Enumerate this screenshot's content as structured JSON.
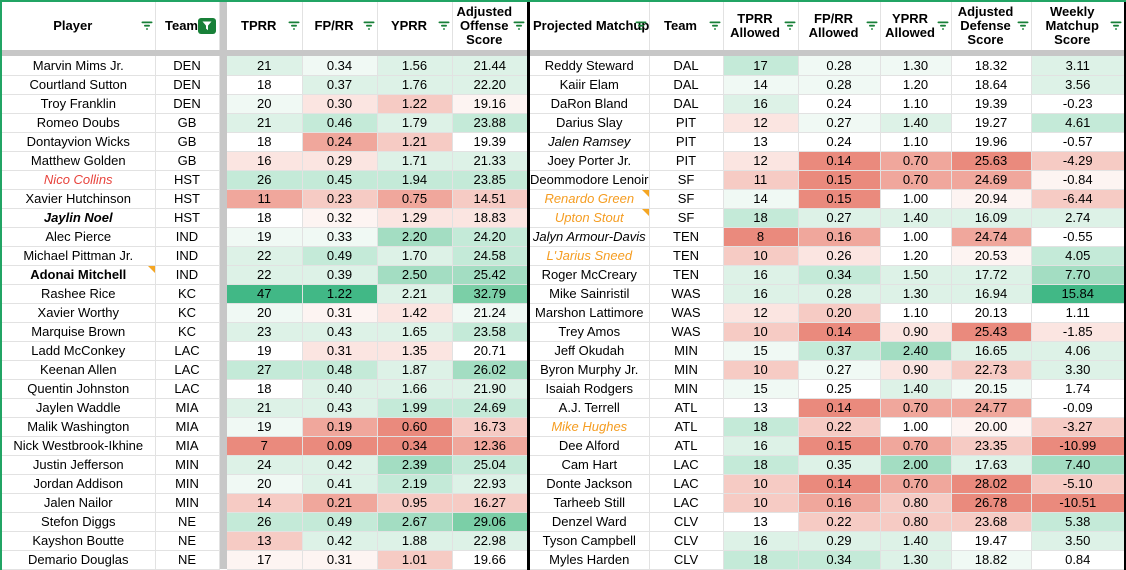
{
  "palette": {
    "G5": "#41b886",
    "G4": "#7bcfa7",
    "G3": "#a3ddc2",
    "G2": "#c4ead8",
    "G1": "#ddf2e7",
    "G0": "#f0f9f4",
    "W": "#ffffff",
    "R0": "#fdf4f2",
    "R1": "#fbe5e1",
    "R2": "#f6cbc4",
    "R3": "#f0a79c",
    "R4": "#ea8a7d"
  },
  "accents": {
    "range_border_green": "#21a464",
    "filter_icon_green": "#188038",
    "active_filter_button_bg": "#188038",
    "note_corner_orange": "#f5a623",
    "player_red_text": "#e8433c",
    "player_orange_text": "#f59d22",
    "frozen_divider_gray": "#c7c7c7",
    "grid_line": "#e2e2e2",
    "right_table_border": "#000000"
  },
  "left_table": {
    "headers": [
      {
        "label": "Player",
        "icon": "filter-lines"
      },
      {
        "label": "Team",
        "icon": "filter-active"
      },
      {
        "label": "TPRR",
        "icon": "filter-lines"
      },
      {
        "label": "FP/RR",
        "icon": "filter-lines"
      },
      {
        "label": "YPRR",
        "icon": "filter-lines"
      },
      {
        "label": "Adjusted Offense Score",
        "icon": "filter-lines"
      }
    ],
    "rows": [
      {
        "player": "Marvin Mims Jr.",
        "team": "DEN",
        "style": "normal",
        "note": false,
        "values": [
          "21",
          "0.34",
          "1.56",
          "21.44"
        ],
        "shades": [
          "G1",
          "G0",
          "G1",
          "G1"
        ]
      },
      {
        "player": "Courtland Sutton",
        "team": "DEN",
        "style": "normal",
        "note": false,
        "values": [
          "18",
          "0.37",
          "1.76",
          "22.20"
        ],
        "shades": [
          "W",
          "G1",
          "G1",
          "G1"
        ]
      },
      {
        "player": "Troy Franklin",
        "team": "DEN",
        "style": "normal",
        "note": false,
        "values": [
          "20",
          "0.30",
          "1.22",
          "19.16"
        ],
        "shades": [
          "G0",
          "R1",
          "R2",
          "R0"
        ]
      },
      {
        "player": "Romeo Doubs",
        "team": "GB",
        "style": "normal",
        "note": false,
        "values": [
          "21",
          "0.46",
          "1.79",
          "23.88"
        ],
        "shades": [
          "G1",
          "G2",
          "G1",
          "G2"
        ]
      },
      {
        "player": "Dontayvion Wicks",
        "team": "GB",
        "style": "normal",
        "note": false,
        "values": [
          "18",
          "0.24",
          "1.21",
          "19.39"
        ],
        "shades": [
          "W",
          "R3",
          "R2",
          "W"
        ]
      },
      {
        "player": "Matthew Golden",
        "team": "GB",
        "style": "normal",
        "note": false,
        "values": [
          "16",
          "0.29",
          "1.71",
          "21.33"
        ],
        "shades": [
          "R1",
          "R1",
          "G1",
          "G1"
        ]
      },
      {
        "player": "Nico Collins",
        "team": "HST",
        "style": "red-italic",
        "note": false,
        "values": [
          "26",
          "0.45",
          "1.94",
          "23.85"
        ],
        "shades": [
          "G2",
          "G2",
          "G2",
          "G2"
        ]
      },
      {
        "player": "Xavier Hutchinson",
        "team": "HST",
        "style": "normal",
        "note": false,
        "values": [
          "11",
          "0.23",
          "0.75",
          "14.51"
        ],
        "shades": [
          "R3",
          "R2",
          "R3",
          "R2"
        ]
      },
      {
        "player": "Jaylin Noel",
        "team": "HST",
        "style": "bold-italic",
        "note": false,
        "values": [
          "18",
          "0.32",
          "1.29",
          "18.83"
        ],
        "shades": [
          "W",
          "R0",
          "R1",
          "R1"
        ]
      },
      {
        "player": "Alec Pierce",
        "team": "IND",
        "style": "normal",
        "note": false,
        "values": [
          "19",
          "0.33",
          "2.20",
          "24.20"
        ],
        "shades": [
          "G0",
          "G0",
          "G3",
          "G2"
        ]
      },
      {
        "player": "Michael Pittman Jr.",
        "team": "IND",
        "style": "normal",
        "note": false,
        "values": [
          "22",
          "0.49",
          "1.70",
          "24.58"
        ],
        "shades": [
          "G1",
          "G2",
          "G1",
          "G2"
        ]
      },
      {
        "player": "Adonai Mitchell",
        "team": "IND",
        "style": "bold",
        "note": true,
        "values": [
          "22",
          "0.39",
          "2.50",
          "25.42"
        ],
        "shades": [
          "G1",
          "G1",
          "G3",
          "G3"
        ]
      },
      {
        "player": "Rashee Rice",
        "team": "KC",
        "style": "normal",
        "note": false,
        "values": [
          "47",
          "1.22",
          "2.21",
          "32.79"
        ],
        "shades": [
          "G5",
          "G5",
          "G1",
          "G4"
        ]
      },
      {
        "player": "Xavier Worthy",
        "team": "KC",
        "style": "normal",
        "note": false,
        "values": [
          "20",
          "0.31",
          "1.42",
          "21.24"
        ],
        "shades": [
          "G0",
          "R0",
          "R1",
          "G0"
        ]
      },
      {
        "player": "Marquise Brown",
        "team": "KC",
        "style": "normal",
        "note": false,
        "values": [
          "23",
          "0.43",
          "1.65",
          "23.58"
        ],
        "shades": [
          "G1",
          "G1",
          "G1",
          "G2"
        ]
      },
      {
        "player": "Ladd McConkey",
        "team": "LAC",
        "style": "normal",
        "note": false,
        "values": [
          "19",
          "0.31",
          "1.35",
          "20.71"
        ],
        "shades": [
          "W",
          "R1",
          "R1",
          "W"
        ]
      },
      {
        "player": "Keenan Allen",
        "team": "LAC",
        "style": "normal",
        "note": false,
        "values": [
          "27",
          "0.48",
          "1.87",
          "26.02"
        ],
        "shades": [
          "G2",
          "G2",
          "G1",
          "G3"
        ]
      },
      {
        "player": "Quentin Johnston",
        "team": "LAC",
        "style": "normal",
        "note": false,
        "values": [
          "18",
          "0.40",
          "1.66",
          "21.90"
        ],
        "shades": [
          "W",
          "G1",
          "G1",
          "G1"
        ]
      },
      {
        "player": "Jaylen Waddle",
        "team": "MIA",
        "style": "normal",
        "note": false,
        "values": [
          "21",
          "0.43",
          "1.99",
          "24.69"
        ],
        "shades": [
          "G1",
          "G1",
          "G2",
          "G2"
        ]
      },
      {
        "player": "Malik Washington",
        "team": "MIA",
        "style": "normal",
        "note": false,
        "values": [
          "19",
          "0.19",
          "0.60",
          "16.73"
        ],
        "shades": [
          "G0",
          "R3",
          "R4",
          "R2"
        ]
      },
      {
        "player": "Nick Westbrook-Ikhine",
        "team": "MIA",
        "style": "normal",
        "note": false,
        "values": [
          "7",
          "0.09",
          "0.34",
          "12.36"
        ],
        "shades": [
          "R4",
          "R4",
          "R4",
          "R3"
        ]
      },
      {
        "player": "Justin Jefferson",
        "team": "MIN",
        "style": "normal",
        "note": false,
        "values": [
          "24",
          "0.42",
          "2.39",
          "25.04"
        ],
        "shades": [
          "G1",
          "G1",
          "G3",
          "G2"
        ]
      },
      {
        "player": "Jordan Addison",
        "team": "MIN",
        "style": "normal",
        "note": false,
        "values": [
          "20",
          "0.41",
          "2.19",
          "22.93"
        ],
        "shades": [
          "G0",
          "G1",
          "G2",
          "G1"
        ]
      },
      {
        "player": "Jalen Nailor",
        "team": "MIN",
        "style": "normal",
        "note": false,
        "values": [
          "14",
          "0.21",
          "0.95",
          "16.27"
        ],
        "shades": [
          "R2",
          "R3",
          "R2",
          "R2"
        ]
      },
      {
        "player": "Stefon Diggs",
        "team": "NE",
        "style": "normal",
        "note": false,
        "values": [
          "26",
          "0.49",
          "2.67",
          "29.06"
        ],
        "shades": [
          "G2",
          "G2",
          "G3",
          "G4"
        ]
      },
      {
        "player": "Kayshon Boutte",
        "team": "NE",
        "style": "normal",
        "note": false,
        "values": [
          "13",
          "0.42",
          "1.88",
          "22.98"
        ],
        "shades": [
          "R2",
          "G1",
          "G1",
          "G1"
        ]
      },
      {
        "player": "Demario Douglas",
        "team": "NE",
        "style": "normal",
        "note": false,
        "values": [
          "17",
          "0.31",
          "1.01",
          "19.66"
        ],
        "shades": [
          "R0",
          "R0",
          "R2",
          "W"
        ]
      }
    ]
  },
  "right_table": {
    "headers": [
      {
        "label": "Projected Matchup",
        "icon": "filter-lines"
      },
      {
        "label": "Team",
        "icon": "filter-lines"
      },
      {
        "label": "TPRR Allowed",
        "icon": "filter-lines"
      },
      {
        "label": "FP/RR Allowed",
        "icon": "filter-lines"
      },
      {
        "label": "YPRR Allowed",
        "icon": "filter-lines"
      },
      {
        "label": "Adjusted Defense Score",
        "icon": "filter-lines"
      },
      {
        "label": "Weekly Matchup Score",
        "icon": "filter-lines"
      }
    ],
    "rows": [
      {
        "player": "Reddy Steward",
        "team": "DAL",
        "style": "normal",
        "note": false,
        "values": [
          "17",
          "0.28",
          "1.30",
          "18.32",
          "3.11"
        ],
        "shades": [
          "G2",
          "G0",
          "G0",
          "W",
          "G1"
        ]
      },
      {
        "player": "Kaiir Elam",
        "team": "DAL",
        "style": "normal",
        "note": false,
        "values": [
          "14",
          "0.28",
          "1.20",
          "18.64",
          "3.56"
        ],
        "shades": [
          "G0",
          "G0",
          "W",
          "W",
          "G1"
        ]
      },
      {
        "player": "DaRon Bland",
        "team": "DAL",
        "style": "normal",
        "note": false,
        "values": [
          "16",
          "0.24",
          "1.10",
          "19.39",
          "-0.23"
        ],
        "shades": [
          "G1",
          "W",
          "W",
          "W",
          "W"
        ]
      },
      {
        "player": "Darius Slay",
        "team": "PIT",
        "style": "normal",
        "note": false,
        "values": [
          "12",
          "0.27",
          "1.40",
          "19.27",
          "4.61"
        ],
        "shades": [
          "R1",
          "G0",
          "G1",
          "W",
          "G2"
        ]
      },
      {
        "player": "Jalen Ramsey",
        "team": "PIT",
        "style": "italic",
        "note": false,
        "values": [
          "13",
          "0.24",
          "1.10",
          "19.96",
          "-0.57"
        ],
        "shades": [
          "W",
          "W",
          "W",
          "W",
          "W"
        ]
      },
      {
        "player": "Joey Porter Jr.",
        "team": "PIT",
        "style": "normal",
        "note": false,
        "values": [
          "12",
          "0.14",
          "0.70",
          "25.63",
          "-4.29"
        ],
        "shades": [
          "R1",
          "R4",
          "R3",
          "R4",
          "R2"
        ]
      },
      {
        "player": "Deommodore Lenoir",
        "team": "SF",
        "style": "normal",
        "note": false,
        "values": [
          "11",
          "0.15",
          "0.70",
          "24.69",
          "-0.84"
        ],
        "shades": [
          "R2",
          "R4",
          "R3",
          "R3",
          "R0"
        ]
      },
      {
        "player": "Renardo Green",
        "team": "SF",
        "style": "orange-italic",
        "note": true,
        "values": [
          "14",
          "0.15",
          "1.00",
          "20.94",
          "-6.44"
        ],
        "shades": [
          "G0",
          "R4",
          "W",
          "R0",
          "R2"
        ]
      },
      {
        "player": "Upton Stout",
        "team": "SF",
        "style": "orange-italic",
        "note": true,
        "values": [
          "18",
          "0.27",
          "1.40",
          "16.09",
          "2.74"
        ],
        "shades": [
          "G2",
          "G1",
          "G1",
          "G1",
          "G1"
        ]
      },
      {
        "player": "Jalyn Armour-Davis",
        "team": "TEN",
        "style": "italic",
        "note": false,
        "values": [
          "8",
          "0.16",
          "1.00",
          "24.74",
          "-0.55"
        ],
        "shades": [
          "R4",
          "R3",
          "W",
          "R3",
          "W"
        ]
      },
      {
        "player": "L'Jarius Sneed",
        "team": "TEN",
        "style": "orange-italic",
        "note": false,
        "values": [
          "10",
          "0.26",
          "1.20",
          "20.53",
          "4.05"
        ],
        "shades": [
          "R2",
          "R1",
          "W",
          "R0",
          "G2"
        ]
      },
      {
        "player": "Roger McCreary",
        "team": "TEN",
        "style": "normal",
        "note": false,
        "values": [
          "16",
          "0.34",
          "1.50",
          "17.72",
          "7.70"
        ],
        "shades": [
          "G1",
          "G2",
          "G1",
          "G1",
          "G3"
        ]
      },
      {
        "player": "Mike Sainristil",
        "team": "WAS",
        "style": "normal",
        "note": false,
        "values": [
          "16",
          "0.28",
          "1.30",
          "16.94",
          "15.84"
        ],
        "shades": [
          "G1",
          "G1",
          "G1",
          "G1",
          "G5"
        ]
      },
      {
        "player": "Marshon Lattimore",
        "team": "WAS",
        "style": "normal",
        "note": false,
        "values": [
          "12",
          "0.20",
          "1.10",
          "20.13",
          "1.11"
        ],
        "shades": [
          "R1",
          "R2",
          "W",
          "W",
          "W"
        ]
      },
      {
        "player": "Trey Amos",
        "team": "WAS",
        "style": "normal",
        "note": false,
        "values": [
          "10",
          "0.14",
          "0.90",
          "25.43",
          "-1.85"
        ],
        "shades": [
          "R2",
          "R4",
          "R1",
          "R4",
          "R1"
        ]
      },
      {
        "player": "Jeff Okudah",
        "team": "MIN",
        "style": "normal",
        "note": false,
        "values": [
          "15",
          "0.37",
          "2.40",
          "16.65",
          "4.06"
        ],
        "shades": [
          "G0",
          "G2",
          "G3",
          "G1",
          "G1"
        ]
      },
      {
        "player": "Byron Murphy Jr.",
        "team": "MIN",
        "style": "normal",
        "note": false,
        "values": [
          "10",
          "0.27",
          "0.90",
          "22.73",
          "3.30"
        ],
        "shades": [
          "R2",
          "G0",
          "R1",
          "R2",
          "G1"
        ]
      },
      {
        "player": "Isaiah Rodgers",
        "team": "MIN",
        "style": "normal",
        "note": false,
        "values": [
          "15",
          "0.25",
          "1.40",
          "20.15",
          "1.74"
        ],
        "shades": [
          "G0",
          "W",
          "G1",
          "G0",
          "W"
        ]
      },
      {
        "player": "A.J. Terrell",
        "team": "ATL",
        "style": "normal",
        "note": false,
        "values": [
          "13",
          "0.14",
          "0.70",
          "24.77",
          "-0.09"
        ],
        "shades": [
          "W",
          "R4",
          "R3",
          "R3",
          "W"
        ]
      },
      {
        "player": "Mike Hughes",
        "team": "ATL",
        "style": "orange-italic",
        "note": false,
        "values": [
          "18",
          "0.22",
          "1.00",
          "20.00",
          "-3.27"
        ],
        "shades": [
          "G2",
          "R2",
          "W",
          "R0",
          "R2"
        ]
      },
      {
        "player": "Dee Alford",
        "team": "ATL",
        "style": "normal",
        "note": false,
        "values": [
          "16",
          "0.15",
          "0.70",
          "23.35",
          "-10.99"
        ],
        "shades": [
          "G1",
          "R4",
          "R3",
          "R2",
          "R4"
        ]
      },
      {
        "player": "Cam Hart",
        "team": "LAC",
        "style": "normal",
        "note": false,
        "values": [
          "18",
          "0.35",
          "2.00",
          "17.63",
          "7.40"
        ],
        "shades": [
          "G2",
          "G1",
          "G3",
          "G1",
          "G3"
        ]
      },
      {
        "player": "Donte Jackson",
        "team": "LAC",
        "style": "normal",
        "note": false,
        "values": [
          "10",
          "0.14",
          "0.70",
          "28.02",
          "-5.10"
        ],
        "shades": [
          "R2",
          "R4",
          "R3",
          "R4",
          "R2"
        ]
      },
      {
        "player": "Tarheeb Still",
        "team": "LAC",
        "style": "normal",
        "note": false,
        "values": [
          "10",
          "0.16",
          "0.80",
          "26.78",
          "-10.51"
        ],
        "shades": [
          "R2",
          "R3",
          "R2",
          "R4",
          "R4"
        ]
      },
      {
        "player": "Denzel Ward",
        "team": "CLV",
        "style": "normal",
        "note": false,
        "values": [
          "13",
          "0.22",
          "0.80",
          "23.68",
          "5.38"
        ],
        "shades": [
          "W",
          "R2",
          "R2",
          "R2",
          "G2"
        ]
      },
      {
        "player": "Tyson Campbell",
        "team": "CLV",
        "style": "normal",
        "note": false,
        "values": [
          "16",
          "0.29",
          "1.40",
          "19.47",
          "3.50"
        ],
        "shades": [
          "G1",
          "G1",
          "G1",
          "W",
          "G1"
        ]
      },
      {
        "player": "Myles Harden",
        "team": "CLV",
        "style": "normal",
        "note": false,
        "values": [
          "18",
          "0.34",
          "1.30",
          "18.82",
          "0.84"
        ],
        "shades": [
          "G2",
          "G2",
          "G1",
          "G0",
          "W"
        ]
      }
    ]
  }
}
